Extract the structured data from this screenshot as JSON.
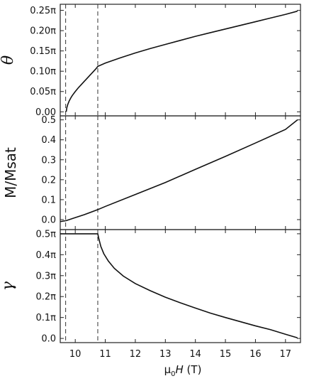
{
  "chart_data": [
    {
      "type": "line",
      "panel": "theta",
      "ylabel": "θ",
      "ylim": [
        -0.01,
        0.265
      ],
      "yticks": [
        0.0,
        0.05,
        0.1,
        0.15,
        0.2,
        0.25
      ],
      "yticklabels": [
        "0.00",
        "0.05π",
        "0.10π",
        "0.15π",
        "0.20π",
        "0.25π"
      ],
      "series": [
        {
          "x": [
            9.7,
            9.72,
            9.75,
            9.8,
            9.85,
            9.9,
            10.0,
            10.1,
            10.2,
            10.3,
            10.4,
            10.5,
            10.6,
            10.7,
            10.75,
            11.0,
            11.5,
            12.0,
            12.5,
            13.0,
            13.5,
            14.0,
            14.5,
            15.0,
            15.5,
            16.0,
            16.5,
            17.0,
            17.4
          ],
          "y": [
            0.0,
            0.01,
            0.018,
            0.027,
            0.034,
            0.04,
            0.05,
            0.059,
            0.067,
            0.075,
            0.083,
            0.091,
            0.099,
            0.107,
            0.112,
            0.12,
            0.133,
            0.145,
            0.156,
            0.166,
            0.176,
            0.186,
            0.195,
            0.204,
            0.213,
            0.222,
            0.231,
            0.24,
            0.248
          ]
        }
      ]
    },
    {
      "type": "line",
      "panel": "magnetization",
      "ylabel": "M/Msat",
      "ylim": [
        -0.05,
        0.52
      ],
      "yticks": [
        0.0,
        0.1,
        0.2,
        0.3,
        0.4,
        0.5
      ],
      "yticklabels": [
        "0.0",
        "0.1",
        "0.2",
        "0.3",
        "0.4",
        "0.5"
      ],
      "series": [
        {
          "x": [
            9.5,
            9.7,
            10.0,
            10.3,
            10.75,
            11.0,
            12.0,
            13.0,
            14.0,
            15.0,
            16.0,
            17.0,
            17.4
          ],
          "y": [
            -0.01,
            -0.005,
            0.01,
            0.025,
            0.05,
            0.066,
            0.126,
            0.186,
            0.252,
            0.317,
            0.384,
            0.452,
            0.5
          ]
        }
      ]
    },
    {
      "type": "line",
      "panel": "gamma",
      "ylabel": "γ",
      "ylim": [
        -0.02,
        0.52
      ],
      "yticks": [
        0.0,
        0.1,
        0.2,
        0.3,
        0.4,
        0.5
      ],
      "yticklabels": [
        "0.0",
        "0.1π",
        "0.2π",
        "0.3π",
        "0.4π",
        "0.5π"
      ],
      "series": [
        {
          "x": [
            9.5,
            10.75,
            10.78,
            10.85,
            10.95,
            11.1,
            11.3,
            11.6,
            12.0,
            12.5,
            13.0,
            13.5,
            14.0,
            14.5,
            15.0,
            15.5,
            16.0,
            16.5,
            17.0,
            17.4
          ],
          "y": [
            0.5,
            0.5,
            0.48,
            0.44,
            0.405,
            0.37,
            0.335,
            0.298,
            0.262,
            0.228,
            0.197,
            0.17,
            0.145,
            0.121,
            0.1,
            0.08,
            0.06,
            0.042,
            0.02,
            0.003
          ]
        }
      ]
    }
  ],
  "xaxis": {
    "xlabel_prefix": "μ",
    "xlabel_sub": "0",
    "xlabel_var": "H",
    "xlabel_unit": " (T)",
    "xlim": [
      9.5,
      17.5
    ],
    "xticks": [
      10,
      11,
      12,
      13,
      14,
      15,
      16,
      17
    ],
    "xticklabels": [
      "10",
      "11",
      "12",
      "13",
      "14",
      "15",
      "16",
      "17"
    ]
  },
  "vlines": [
    9.68,
    10.75
  ]
}
